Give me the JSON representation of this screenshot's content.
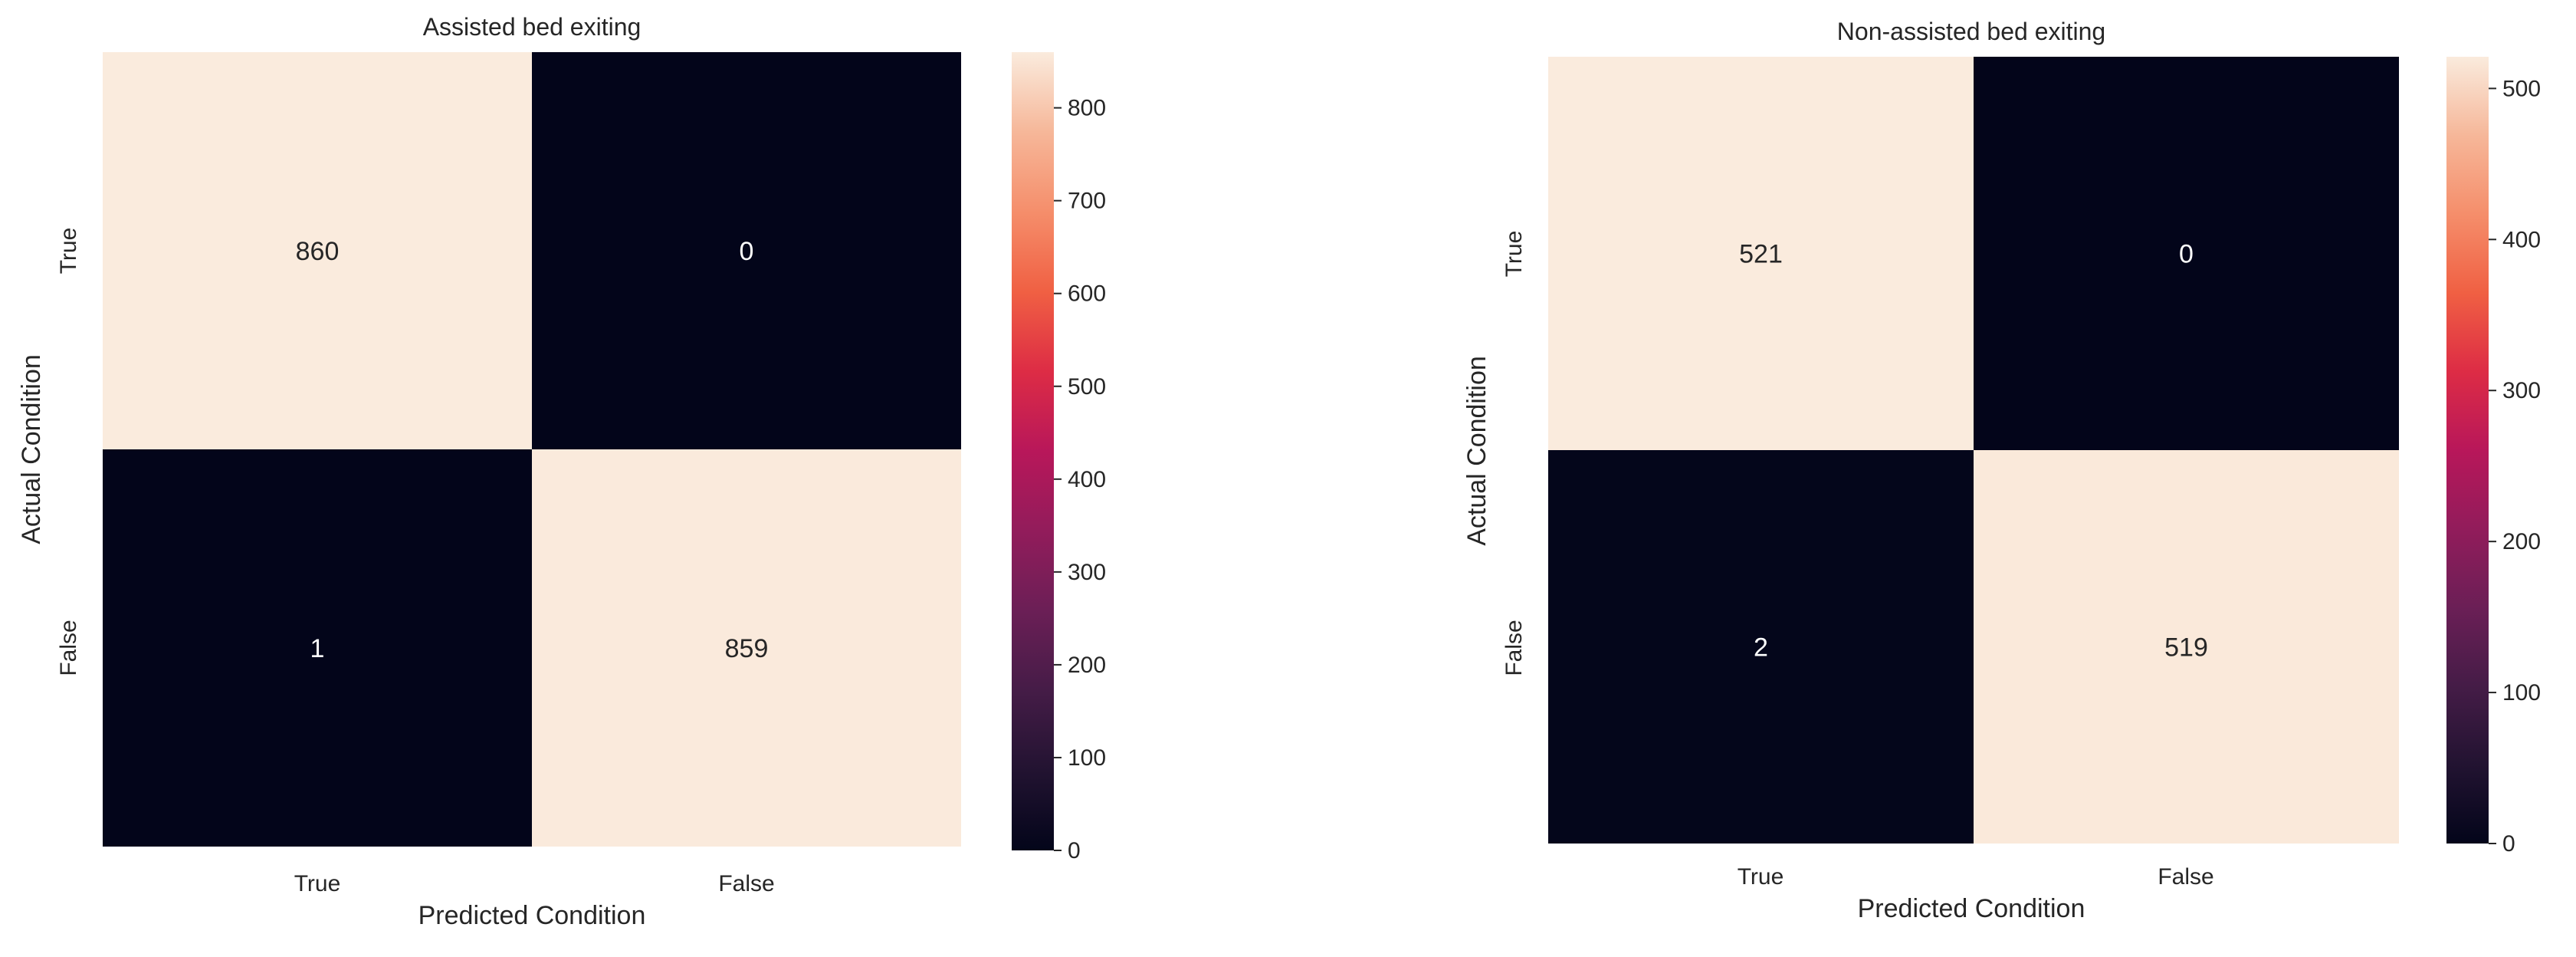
{
  "chart_data": [
    {
      "type": "heatmap",
      "title": "Assisted bed exiting",
      "xlabel": "Predicted Condition",
      "ylabel": "Actual Condition",
      "x_categories": [
        "True",
        "False"
      ],
      "y_categories": [
        "True",
        "False"
      ],
      "values": [
        [
          860,
          0
        ],
        [
          1,
          859
        ]
      ],
      "colorbar": {
        "min": 0,
        "max": 860,
        "ticks": [
          0,
          100,
          200,
          300,
          400,
          500,
          600,
          700,
          800
        ]
      }
    },
    {
      "type": "heatmap",
      "title": "Non-assisted bed exiting",
      "xlabel": "Predicted Condition",
      "ylabel": "Actual Condition",
      "x_categories": [
        "True",
        "False"
      ],
      "y_categories": [
        "True",
        "False"
      ],
      "values": [
        [
          521,
          0
        ],
        [
          2,
          519
        ]
      ],
      "colorbar": {
        "min": 0,
        "max": 521,
        "ticks": [
          0,
          100,
          200,
          300,
          400,
          500
        ]
      }
    }
  ]
}
